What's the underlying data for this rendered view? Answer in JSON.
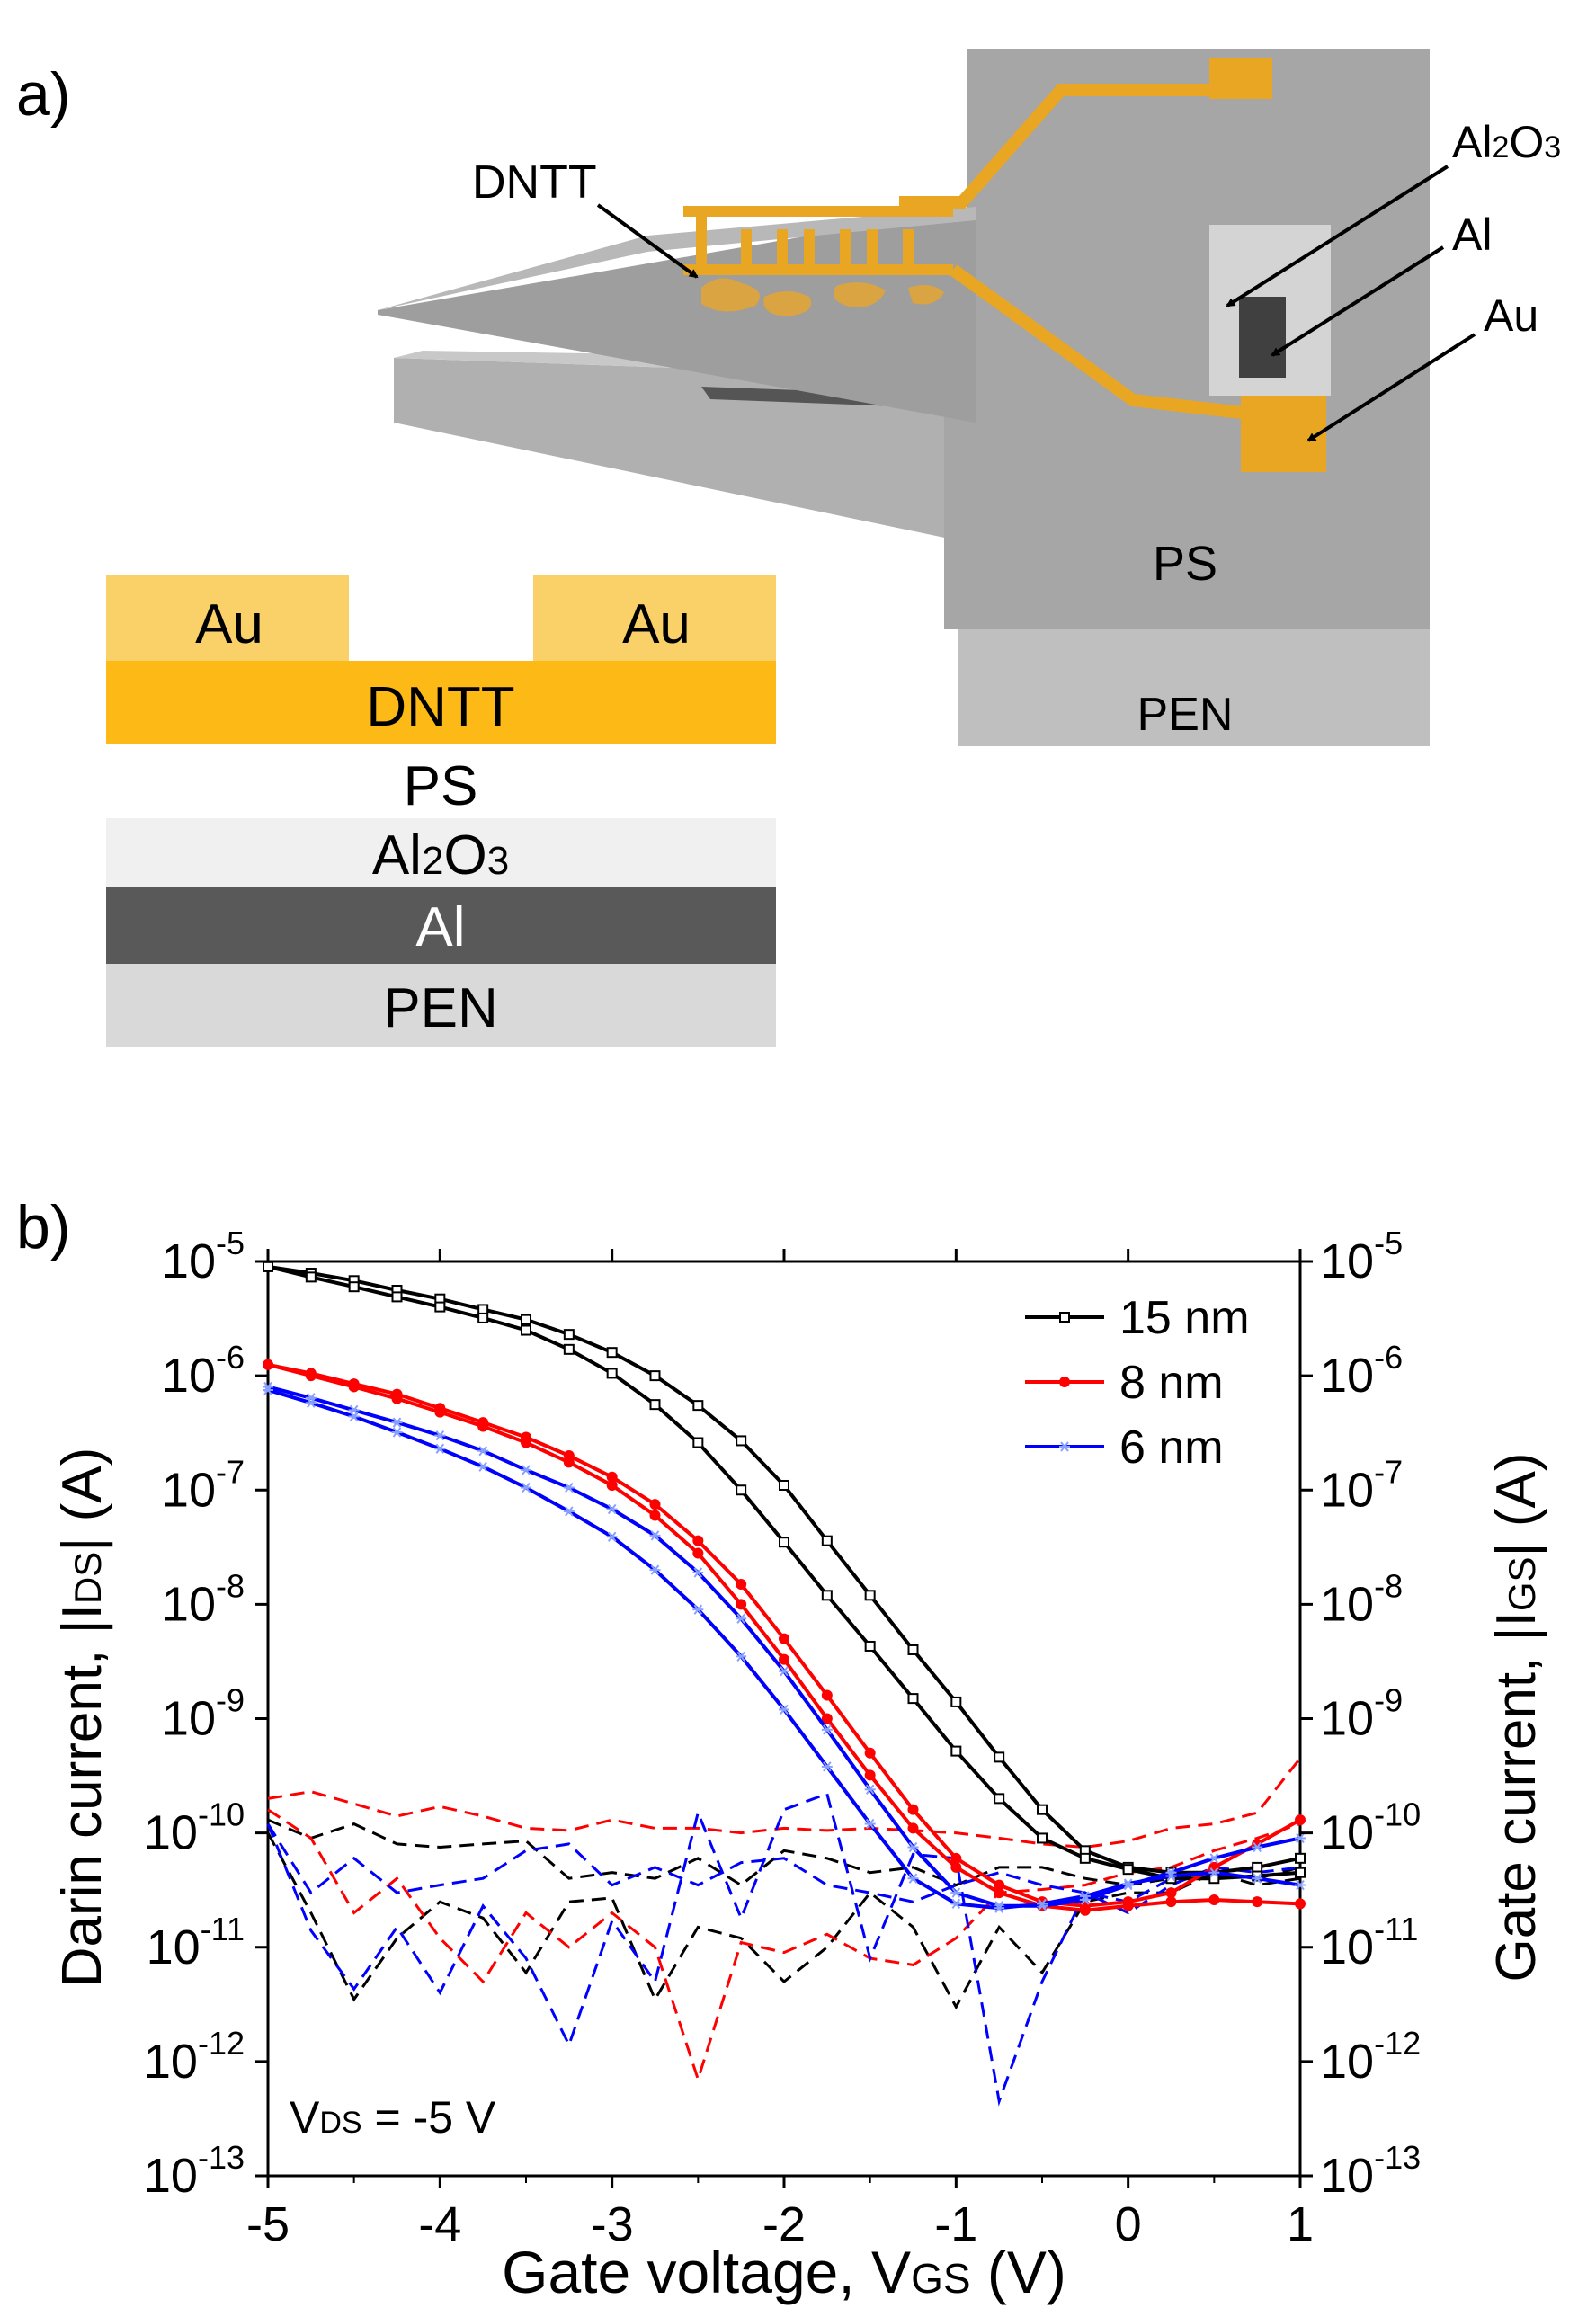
{
  "panel_a": {
    "label": "a)",
    "device_labels": {
      "dntt": "DNTT",
      "al2o3_main": "Al",
      "al2o3_sub": "2",
      "al2o3_o": "O",
      "al2o3_sub2": "3",
      "al": "Al",
      "au": "Au",
      "ps": "PS",
      "pen": "PEN"
    },
    "stack": {
      "au_left": "Au",
      "au_right": "Au",
      "dntt": "DNTT",
      "ps": "PS",
      "al2o3_main": "Al",
      "al2o3_sub": "2",
      "al2o3_o": "O",
      "al2o3_sub2": "3",
      "al": "Al",
      "pen": "PEN"
    },
    "colors": {
      "au": "#F9D168",
      "dntt": "#FDB915",
      "al2o3": "#F0F0F0",
      "al": "#595959",
      "pen": "#D9D9D9",
      "device_gray": "#A6A6A6",
      "trace_gold": "#E8A623"
    }
  },
  "panel_b": {
    "label": "b)",
    "y_left_label": {
      "pre": "Darin current, |I",
      "sub": "DS",
      "post": "| (A)"
    },
    "y_right_label": {
      "pre": "Gate current, |I",
      "sub": "GS",
      "post": "| (A)"
    },
    "x_label": {
      "pre": "Gate voltage, V",
      "sub": "GS",
      "post": " (V)"
    },
    "annotation": {
      "pre": "V",
      "sub": "DS",
      "post": " = -5 V"
    }
  },
  "chart_data": {
    "type": "line",
    "y_scale": "log",
    "xlim": [
      -5,
      1
    ],
    "ylim": [
      1e-13,
      1e-05
    ],
    "x_ticks": [
      "-5",
      "-4",
      "-3",
      "-2",
      "-1",
      "0",
      "1"
    ],
    "x_tick_values": [
      -5,
      -4,
      -3,
      -2,
      -1,
      0,
      1
    ],
    "y_tick_exponents": [
      -13,
      -12,
      -11,
      -10,
      -9,
      -8,
      -7,
      -6,
      -5
    ],
    "y_tick_base": "10",
    "legend": {
      "position": "top-right"
    },
    "series": [
      {
        "name": "15 nm",
        "color": "#000000",
        "marker": "square",
        "kind": "drain",
        "branches": [
          {
            "x": [
              -5,
              -4.75,
              -4.5,
              -4.25,
              -4,
              -3.75,
              -3.5,
              -3.25,
              -3,
              -2.75,
              -2.5,
              -2.25,
              -2,
              -1.75,
              -1.5,
              -1.25,
              -1,
              -0.75,
              -0.5,
              -0.25,
              0,
              0.25,
              0.5,
              0.75,
              1
            ],
            "y": [
              9e-06,
              7.9e-06,
              6.8e-06,
              5.6e-06,
              4.7e-06,
              3.8e-06,
              3.1e-06,
              2.3e-06,
              1.6e-06,
              1e-06,
              5.5e-07,
              2.7e-07,
              1.1e-07,
              3.6e-08,
              1.2e-08,
              4e-09,
              1.4e-09,
              4.6e-10,
              1.6e-10,
              7e-11,
              5e-11,
              4.5e-11,
              4.5e-11,
              5e-11,
              6e-11
            ]
          },
          {
            "x": [
              -5,
              -4.75,
              -4.5,
              -4.25,
              -4,
              -3.75,
              -3.5,
              -3.25,
              -3,
              -2.75,
              -2.5,
              -2.25,
              -2,
              -1.75,
              -1.5,
              -1.25,
              -1,
              -0.75,
              -0.5,
              -0.25,
              0,
              0.25,
              0.5,
              0.75,
              1
            ],
            "y": [
              9e-06,
              7.3e-06,
              6e-06,
              4.9e-06,
              4e-06,
              3.2e-06,
              2.5e-06,
              1.7e-06,
              1.05e-06,
              5.6e-07,
              2.6e-07,
              1e-07,
              3.5e-08,
              1.2e-08,
              4.3e-09,
              1.5e-09,
              5.2e-10,
              2e-10,
              9e-11,
              6e-11,
              4.8e-11,
              4e-11,
              4e-11,
              4.2e-11,
              4.5e-11
            ]
          }
        ]
      },
      {
        "name": "8 nm",
        "color": "#FF0000",
        "marker": "circle",
        "kind": "drain",
        "branches": [
          {
            "x": [
              -5,
              -4.75,
              -4.5,
              -4.25,
              -4,
              -3.75,
              -3.5,
              -3.25,
              -3,
              -2.75,
              -2.5,
              -2.25,
              -2,
              -1.75,
              -1.5,
              -1.25,
              -1,
              -0.75,
              -0.5,
              -0.25,
              0,
              0.25,
              0.5,
              0.75,
              1
            ],
            "y": [
              1.25e-06,
              1.05e-06,
              8.5e-07,
              6.9e-07,
              5.2e-07,
              3.9e-07,
              2.9e-07,
              2e-07,
              1.3e-07,
              7.5e-08,
              3.6e-08,
              1.5e-08,
              5e-09,
              1.6e-09,
              5e-10,
              1.6e-10,
              6e-11,
              3.5e-11,
              2.5e-11,
              2.3e-11,
              2.5e-11,
              3e-11,
              5e-11,
              8e-11,
              1.3e-10
            ]
          },
          {
            "x": [
              -5,
              -4.75,
              -4.5,
              -4.25,
              -4,
              -3.75,
              -3.5,
              -3.25,
              -3,
              -2.75,
              -2.5,
              -2.25,
              -2,
              -1.75,
              -1.5,
              -1.25,
              -1,
              -0.75,
              -0.5,
              -0.25,
              0,
              0.25,
              0.5,
              0.75,
              1
            ],
            "y": [
              1.25e-06,
              1e-06,
              8e-07,
              6.3e-07,
              4.8e-07,
              3.6e-07,
              2.6e-07,
              1.75e-07,
              1.1e-07,
              6e-08,
              2.8e-08,
              1e-08,
              3.3e-09,
              1e-09,
              3.2e-10,
              1.1e-10,
              5e-11,
              3e-11,
              2.3e-11,
              2.1e-11,
              2.3e-11,
              2.5e-11,
              2.6e-11,
              2.5e-11,
              2.4e-11
            ]
          }
        ]
      },
      {
        "name": "6 nm",
        "color": "#0000FF",
        "marker": "asterisk",
        "kind": "drain",
        "branches": [
          {
            "x": [
              -5,
              -4.75,
              -4.5,
              -4.25,
              -4,
              -3.75,
              -3.5,
              -3.25,
              -3,
              -2.75,
              -2.5,
              -2.25,
              -2,
              -1.75,
              -1.5,
              -1.25,
              -1,
              -0.75,
              -0.5,
              -0.25,
              0,
              0.25,
              0.5,
              0.75,
              1
            ],
            "y": [
              8e-07,
              6.4e-07,
              5e-07,
              3.9e-07,
              3e-07,
              2.2e-07,
              1.5e-07,
              1.05e-07,
              6.8e-08,
              4e-08,
              1.9e-08,
              7.5e-09,
              2.6e-09,
              8e-10,
              2.4e-10,
              7.5e-11,
              3e-11,
              2.3e-11,
              2.3e-11,
              2.6e-11,
              3.5e-11,
              4.5e-11,
              6e-11,
              7.5e-11,
              9e-11
            ]
          },
          {
            "x": [
              -5,
              -4.75,
              -4.5,
              -4.25,
              -4,
              -3.75,
              -3.5,
              -3.25,
              -3,
              -2.75,
              -2.5,
              -2.25,
              -2,
              -1.75,
              -1.5,
              -1.25,
              -1,
              -0.75,
              -0.5,
              -0.25,
              0,
              0.25,
              0.5,
              0.75,
              1
            ],
            "y": [
              7.5e-07,
              5.8e-07,
              4.4e-07,
              3.2e-07,
              2.3e-07,
              1.6e-07,
              1.05e-07,
              6.5e-08,
              3.9e-08,
              2e-08,
              9e-09,
              3.5e-09,
              1.2e-09,
              3.8e-10,
              1.2e-10,
              4e-11,
              2.4e-11,
              2.2e-11,
              2.4e-11,
              2.8e-11,
              3.6e-11,
              4.2e-11,
              4.5e-11,
              4e-11,
              3.5e-11
            ]
          }
        ]
      },
      {
        "name": "",
        "color": "#000000",
        "kind": "gate",
        "dashed": true,
        "branches": [
          {
            "x": [
              -5,
              -4.75,
              -4.5,
              -4.25,
              -4,
              -3.75,
              -3.5,
              -3.25,
              -3,
              -2.75,
              -2.5,
              -2.25,
              -2,
              -1.75,
              -1.5,
              -1.25,
              -1,
              -0.75,
              -0.5,
              -0.25,
              0,
              0.25,
              0.5,
              0.75,
              1
            ],
            "y": [
              1.3e-10,
              9e-11,
              1.2e-10,
              8e-11,
              7.5e-11,
              8e-11,
              8.5e-11,
              4e-11,
              4.5e-11,
              4e-11,
              6e-11,
              3.5e-11,
              7e-11,
              6e-11,
              4.5e-11,
              5e-11,
              3.5e-11,
              5e-11,
              5e-11,
              4e-11,
              3.5e-11,
              4e-11,
              4.5e-11,
              4e-11,
              5e-11
            ]
          },
          {
            "x": [
              -5,
              -4.75,
              -4.5,
              -4.25,
              -4,
              -3.75,
              -3.5,
              -3.25,
              -3,
              -2.75,
              -2.5,
              -2.25,
              -2,
              -1.75,
              -1.5,
              -1.25,
              -1,
              -0.75,
              -0.5,
              -0.25,
              0,
              0.25,
              0.5,
              0.75,
              1
            ],
            "y": [
              1e-10,
              2e-11,
              3.5e-12,
              1.2e-11,
              2.5e-11,
              1.8e-11,
              6e-12,
              2.5e-11,
              2.7e-11,
              3.5e-12,
              1.5e-11,
              1.2e-11,
              5e-12,
              1e-11,
              3e-11,
              1.5e-11,
              3e-12,
              1.5e-11,
              6e-12,
              2.5e-11,
              3e-11,
              3e-11,
              4.5e-11,
              3.5e-11,
              4e-11
            ]
          }
        ]
      },
      {
        "name": "",
        "color": "#FF0000",
        "kind": "gate",
        "dashed": true,
        "branches": [
          {
            "x": [
              -5,
              -4.75,
              -4.5,
              -4.25,
              -4,
              -3.75,
              -3.5,
              -3.25,
              -3,
              -2.75,
              -2.5,
              -2.25,
              -2,
              -1.75,
              -1.5,
              -1.25,
              -1,
              -0.75,
              -0.5,
              -0.25,
              0,
              0.25,
              0.5,
              0.75,
              1
            ],
            "y": [
              2e-10,
              2.3e-10,
              1.8e-10,
              1.4e-10,
              1.7e-10,
              1.4e-10,
              1.1e-10,
              1.05e-10,
              1.3e-10,
              1.1e-10,
              1.1e-10,
              1e-10,
              1.1e-10,
              1.05e-10,
              1.1e-10,
              1.05e-10,
              1e-10,
              9e-11,
              8e-11,
              7.5e-11,
              8.5e-11,
              1.1e-10,
              1.2e-10,
              1.5e-10,
              4.5e-10
            ]
          },
          {
            "x": [
              -5,
              -4.75,
              -4.5,
              -4.25,
              -4,
              -3.75,
              -3.5,
              -3.25,
              -3,
              -2.75,
              -2.5,
              -2.25,
              -2,
              -1.75,
              -1.5,
              -1.25,
              -1,
              -0.75,
              -0.5,
              -0.25,
              0,
              0.25,
              0.5,
              0.75,
              1
            ],
            "y": [
              1.6e-10,
              9e-11,
              2e-11,
              4e-11,
              1.2e-11,
              5e-12,
              2e-11,
              1e-11,
              2e-11,
              1e-11,
              7e-13,
              1.1e-11,
              9e-12,
              1.3e-11,
              8e-12,
              7e-12,
              1.2e-11,
              3e-11,
              3.2e-11,
              3.5e-11,
              4.5e-11,
              5e-11,
              7e-11,
              9e-11,
              1.2e-10
            ]
          }
        ]
      },
      {
        "name": "",
        "color": "#0000FF",
        "kind": "gate",
        "dashed": true,
        "branches": [
          {
            "x": [
              -5,
              -4.75,
              -4.5,
              -4.25,
              -4,
              -3.75,
              -3.5,
              -3.25,
              -3,
              -2.75,
              -2.5,
              -2.25,
              -2,
              -1.75,
              -1.5,
              -1.25,
              -1,
              -0.75,
              -0.5,
              -0.25,
              0,
              0.25,
              0.5,
              0.75,
              1
            ],
            "y": [
              1.2e-10,
              1.4e-11,
              4.3e-12,
              1.5e-11,
              4e-12,
              2.3e-11,
              8e-12,
              1.4e-12,
              1.7e-11,
              5e-12,
              1.5e-10,
              1.8e-11,
              1.6e-10,
              2.2e-10,
              8e-12,
              6.5e-11,
              6e-11,
              4.5e-13,
              5e-12,
              3e-11,
              2e-11,
              3.5e-11,
              5e-11,
              4.5e-11,
              5e-11
            ]
          },
          {
            "x": [
              -5,
              -4.75,
              -4.5,
              -4.25,
              -4,
              -3.75,
              -3.5,
              -3.25,
              -3,
              -2.75,
              -2.5,
              -2.25,
              -2,
              -1.75,
              -1.5,
              -1.25,
              -1,
              -0.75,
              -0.5,
              -0.25,
              0,
              0.25,
              0.5,
              0.75,
              1
            ],
            "y": [
              1.2e-10,
              3e-11,
              6e-11,
              3e-11,
              3.5e-11,
              4e-11,
              7e-11,
              8e-11,
              3.5e-11,
              5e-11,
              3.5e-11,
              5.5e-11,
              6e-11,
              3.5e-11,
              3e-11,
              2.5e-11,
              3.5e-11,
              4.5e-11,
              3.5e-11,
              3e-11,
              2.5e-11,
              4e-11,
              4.5e-11,
              5e-11,
              6e-11
            ]
          }
        ]
      }
    ]
  }
}
